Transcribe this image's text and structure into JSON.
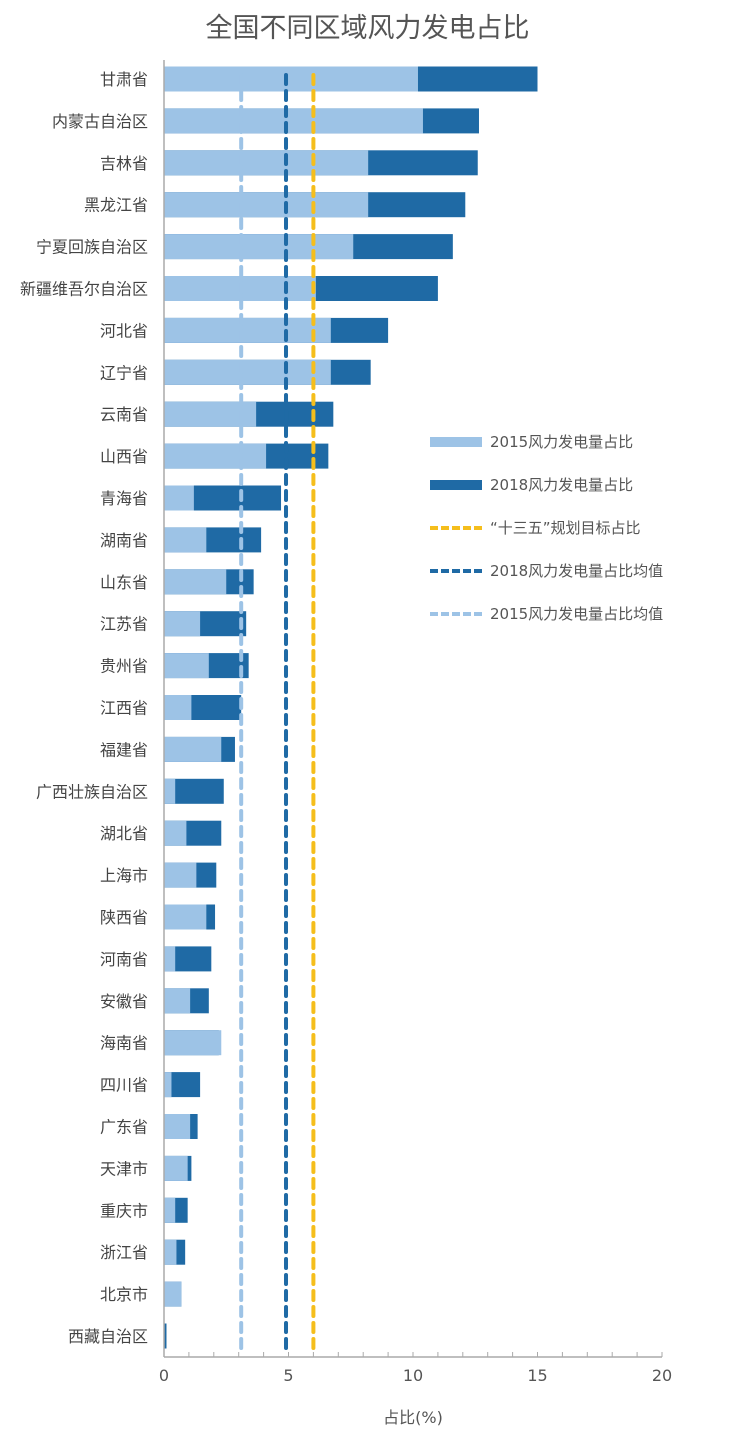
{
  "chart_data": {
    "type": "bar",
    "orientation": "horizontal",
    "title": "全国不同区域风力发电占比",
    "xlabel": "占比(%)",
    "ylabel": "",
    "xlim": [
      0,
      20
    ],
    "xticks": [
      0,
      5,
      10,
      15,
      20
    ],
    "grid": false,
    "legend_position": "right",
    "categories": [
      "甘肃省",
      "内蒙古自治区",
      "吉林省",
      "黑龙江省",
      "宁夏回族自治区",
      "新疆维吾尔自治区",
      "河北省",
      "辽宁省",
      "云南省",
      "山西省",
      "青海省",
      "湖南省",
      "山东省",
      "江苏省",
      "贵州省",
      "江西省",
      "福建省",
      "广西壮族自治区",
      "湖北省",
      "上海市",
      "陕西省",
      "河南省",
      "安徽省",
      "海南省",
      "四川省",
      "广东省",
      "天津市",
      "重庆市",
      "浙江省",
      "北京市",
      "西藏自治区"
    ],
    "series": [
      {
        "name": "2015风力发电量占比",
        "color": "#9dc3e6",
        "values": [
          10.2,
          10.4,
          8.2,
          8.2,
          7.6,
          6.1,
          6.7,
          6.7,
          3.7,
          4.1,
          1.2,
          1.7,
          2.5,
          1.45,
          1.8,
          1.1,
          2.3,
          0.45,
          0.9,
          1.3,
          1.7,
          0.45,
          1.05,
          2.3,
          0.3,
          1.05,
          0.95,
          0.45,
          0.5,
          0.7,
          0.0
        ]
      },
      {
        "name": "2018风力发电量占比",
        "color": "#1f6aa5",
        "values": [
          15.0,
          12.65,
          12.6,
          12.1,
          11.6,
          11.0,
          9.0,
          8.3,
          6.8,
          6.6,
          4.7,
          3.9,
          3.6,
          3.3,
          3.4,
          3.1,
          2.85,
          2.4,
          2.3,
          2.1,
          2.05,
          1.9,
          1.8,
          2.2,
          1.45,
          1.35,
          1.1,
          0.95,
          0.85,
          0.7,
          0.1
        ]
      }
    ],
    "reference_lines": [
      {
        "name": "“十三五”规划目标占比",
        "value": 6.0,
        "color": "#f5be1c"
      },
      {
        "name": "2018风力发电量占比均值",
        "value": 4.9,
        "color": "#1f6aa5"
      },
      {
        "name": "2015风力发电量占比均值",
        "value": 3.1,
        "color": "#9dc3e6"
      }
    ]
  }
}
